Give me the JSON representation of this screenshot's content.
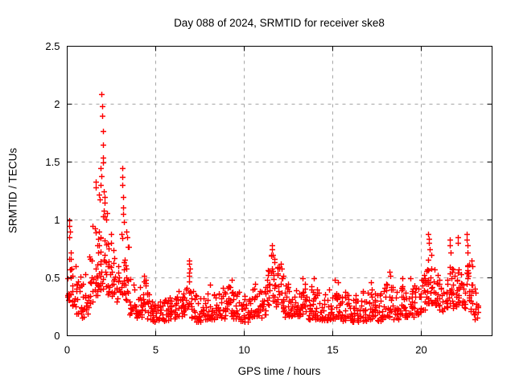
{
  "window": {
    "background": "#ffffff"
  },
  "chart_data": {
    "type": "scatter",
    "title": "Day 088 of 2024, SRMTID for receiver ske8",
    "xlabel": "GPS time / hours",
    "ylabel": "SRMTID / TECUs",
    "xlim": [
      0,
      24
    ],
    "ylim": [
      0,
      2.5
    ],
    "xticks": [
      0,
      5,
      10,
      15,
      20
    ],
    "xtick_labels": [
      "0",
      "5",
      "10",
      "15",
      "20"
    ],
    "yticks": [
      0,
      0.5,
      1,
      1.5,
      2,
      2.5
    ],
    "ytick_labels": [
      "0",
      "0.5",
      "1",
      "1.5",
      "2",
      "2.5"
    ],
    "grid": true,
    "grid_color": "#a6a6a6",
    "border_color": "#000000",
    "text_color": "#000000",
    "marker": "plus",
    "marker_color": "#ff0000",
    "legend": "none",
    "series": [
      {
        "name": "SRMTID",
        "bin_width_hours": 0.25,
        "bands": [
          [
            0.0,
            0.3,
            0.72,
            14
          ],
          [
            0.25,
            0.25,
            0.62,
            13
          ],
          [
            0.5,
            0.18,
            0.52,
            12
          ],
          [
            0.75,
            0.15,
            0.45,
            12
          ],
          [
            1.0,
            0.18,
            0.55,
            12
          ],
          [
            1.25,
            0.28,
            0.72,
            13
          ],
          [
            1.5,
            0.35,
            0.95,
            15
          ],
          [
            1.75,
            0.4,
            1.15,
            17
          ],
          [
            2.0,
            0.4,
            1.1,
            17
          ],
          [
            2.25,
            0.35,
            0.9,
            14
          ],
          [
            2.5,
            0.3,
            0.75,
            13
          ],
          [
            2.75,
            0.28,
            0.68,
            12
          ],
          [
            3.0,
            0.35,
            0.95,
            14
          ],
          [
            3.25,
            0.3,
            0.8,
            13
          ],
          [
            3.5,
            0.18,
            0.5,
            12
          ],
          [
            3.75,
            0.15,
            0.4,
            12
          ],
          [
            4.0,
            0.15,
            0.42,
            12
          ],
          [
            4.25,
            0.18,
            0.5,
            12
          ],
          [
            4.5,
            0.14,
            0.4,
            12
          ],
          [
            4.75,
            0.12,
            0.32,
            12
          ],
          [
            5.0,
            0.12,
            0.28,
            12
          ],
          [
            5.25,
            0.12,
            0.3,
            12
          ],
          [
            5.5,
            0.13,
            0.32,
            12
          ],
          [
            5.75,
            0.14,
            0.35,
            12
          ],
          [
            6.0,
            0.14,
            0.35,
            12
          ],
          [
            6.25,
            0.15,
            0.4,
            12
          ],
          [
            6.5,
            0.18,
            0.45,
            12
          ],
          [
            6.75,
            0.22,
            0.58,
            13
          ],
          [
            7.0,
            0.15,
            0.42,
            12
          ],
          [
            7.25,
            0.12,
            0.35,
            12
          ],
          [
            7.5,
            0.12,
            0.35,
            12
          ],
          [
            7.75,
            0.14,
            0.4,
            12
          ],
          [
            8.0,
            0.14,
            0.4,
            12
          ],
          [
            8.25,
            0.12,
            0.36,
            12
          ],
          [
            8.5,
            0.14,
            0.38,
            12
          ],
          [
            8.75,
            0.15,
            0.42,
            12
          ],
          [
            9.0,
            0.16,
            0.45,
            12
          ],
          [
            9.25,
            0.15,
            0.42,
            12
          ],
          [
            9.5,
            0.14,
            0.38,
            12
          ],
          [
            9.75,
            0.12,
            0.35,
            12
          ],
          [
            10.0,
            0.12,
            0.35,
            12
          ],
          [
            10.25,
            0.14,
            0.4,
            12
          ],
          [
            10.5,
            0.16,
            0.42,
            12
          ],
          [
            10.75,
            0.15,
            0.4,
            12
          ],
          [
            11.0,
            0.18,
            0.45,
            12
          ],
          [
            11.25,
            0.24,
            0.6,
            13
          ],
          [
            11.5,
            0.3,
            0.72,
            15
          ],
          [
            11.75,
            0.25,
            0.62,
            13
          ],
          [
            12.0,
            0.2,
            0.55,
            12
          ],
          [
            12.25,
            0.16,
            0.45,
            12
          ],
          [
            12.5,
            0.14,
            0.4,
            12
          ],
          [
            12.75,
            0.15,
            0.42,
            12
          ],
          [
            13.0,
            0.16,
            0.45,
            12
          ],
          [
            13.25,
            0.15,
            0.45,
            12
          ],
          [
            13.5,
            0.14,
            0.4,
            12
          ],
          [
            13.75,
            0.15,
            0.46,
            12
          ],
          [
            14.0,
            0.14,
            0.42,
            12
          ],
          [
            14.25,
            0.12,
            0.35,
            12
          ],
          [
            14.5,
            0.13,
            0.38,
            12
          ],
          [
            14.75,
            0.14,
            0.42,
            12
          ],
          [
            15.0,
            0.14,
            0.44,
            12
          ],
          [
            15.25,
            0.14,
            0.42,
            12
          ],
          [
            15.5,
            0.12,
            0.38,
            12
          ],
          [
            15.75,
            0.12,
            0.36,
            12
          ],
          [
            16.0,
            0.12,
            0.35,
            12
          ],
          [
            16.25,
            0.12,
            0.36,
            12
          ],
          [
            16.5,
            0.13,
            0.4,
            12
          ],
          [
            16.75,
            0.12,
            0.38,
            12
          ],
          [
            17.0,
            0.13,
            0.4,
            12
          ],
          [
            17.25,
            0.14,
            0.42,
            12
          ],
          [
            17.5,
            0.12,
            0.4,
            12
          ],
          [
            17.75,
            0.14,
            0.42,
            12
          ],
          [
            18.0,
            0.16,
            0.48,
            12
          ],
          [
            18.25,
            0.14,
            0.42,
            12
          ],
          [
            18.5,
            0.14,
            0.4,
            12
          ],
          [
            18.75,
            0.18,
            0.45,
            12
          ],
          [
            19.0,
            0.16,
            0.44,
            12
          ],
          [
            19.25,
            0.18,
            0.46,
            12
          ],
          [
            19.5,
            0.16,
            0.44,
            12
          ],
          [
            19.75,
            0.18,
            0.48,
            12
          ],
          [
            20.0,
            0.22,
            0.55,
            12
          ],
          [
            20.25,
            0.28,
            0.68,
            14
          ],
          [
            20.5,
            0.28,
            0.62,
            13
          ],
          [
            20.75,
            0.24,
            0.55,
            12
          ],
          [
            21.0,
            0.2,
            0.5,
            12
          ],
          [
            21.25,
            0.24,
            0.55,
            12
          ],
          [
            21.5,
            0.28,
            0.64,
            14
          ],
          [
            21.75,
            0.24,
            0.58,
            12
          ],
          [
            22.0,
            0.28,
            0.64,
            13
          ],
          [
            22.25,
            0.24,
            0.58,
            12
          ],
          [
            22.5,
            0.28,
            0.64,
            14
          ],
          [
            22.75,
            0.18,
            0.55,
            12
          ],
          [
            23.0,
            0.14,
            0.42,
            10
          ]
        ],
        "spike_points": [
          [
            0.1,
            1.0
          ],
          [
            0.12,
            0.95
          ],
          [
            0.15,
            0.9
          ],
          [
            0.13,
            0.85
          ],
          [
            1.45,
            0.95
          ],
          [
            1.55,
            0.93
          ],
          [
            1.6,
            1.28
          ],
          [
            1.63,
            1.33
          ],
          [
            1.95,
            2.09
          ],
          [
            1.97,
            1.98
          ],
          [
            1.98,
            1.9
          ],
          [
            2.0,
            1.77
          ],
          [
            2.02,
            1.65
          ],
          [
            2.03,
            1.54
          ],
          [
            2.03,
            1.5
          ],
          [
            1.9,
            1.45
          ],
          [
            1.92,
            1.38
          ],
          [
            1.88,
            1.3
          ],
          [
            2.05,
            1.25
          ],
          [
            2.1,
            1.2
          ],
          [
            2.12,
            1.15
          ],
          [
            1.8,
            1.22
          ],
          [
            1.85,
            1.18
          ],
          [
            3.1,
            1.45
          ],
          [
            3.12,
            1.37
          ],
          [
            3.13,
            1.3
          ],
          [
            3.15,
            1.2
          ],
          [
            3.17,
            1.11
          ],
          [
            3.18,
            1.05
          ],
          [
            3.2,
            0.98
          ],
          [
            3.35,
            0.9
          ],
          [
            3.38,
            0.85
          ],
          [
            4.35,
            0.52
          ],
          [
            6.88,
            0.65
          ],
          [
            6.9,
            0.62
          ],
          [
            6.92,
            0.58
          ],
          [
            8.05,
            0.44
          ],
          [
            9.3,
            0.48
          ],
          [
            10.6,
            0.45
          ],
          [
            11.55,
            0.78
          ],
          [
            11.58,
            0.75
          ],
          [
            11.62,
            0.7
          ],
          [
            11.7,
            0.66
          ],
          [
            12.05,
            0.62
          ],
          [
            12.1,
            0.58
          ],
          [
            13.3,
            0.5
          ],
          [
            13.95,
            0.5
          ],
          [
            15.1,
            0.48
          ],
          [
            15.3,
            0.46
          ],
          [
            17.15,
            0.46
          ],
          [
            18.2,
            0.55
          ],
          [
            18.25,
            0.52
          ],
          [
            18.95,
            0.5
          ],
          [
            19.4,
            0.5
          ],
          [
            20.4,
            0.88
          ],
          [
            20.42,
            0.84
          ],
          [
            20.45,
            0.8
          ],
          [
            20.48,
            0.75
          ],
          [
            20.55,
            0.7
          ],
          [
            21.6,
            0.83
          ],
          [
            21.62,
            0.78
          ],
          [
            21.65,
            0.72
          ],
          [
            22.05,
            0.85
          ],
          [
            22.08,
            0.8
          ],
          [
            22.55,
            0.88
          ],
          [
            22.58,
            0.83
          ],
          [
            22.6,
            0.78
          ],
          [
            22.62,
            0.72
          ],
          [
            22.85,
            0.65
          ],
          [
            22.9,
            0.6
          ]
        ]
      }
    ]
  }
}
